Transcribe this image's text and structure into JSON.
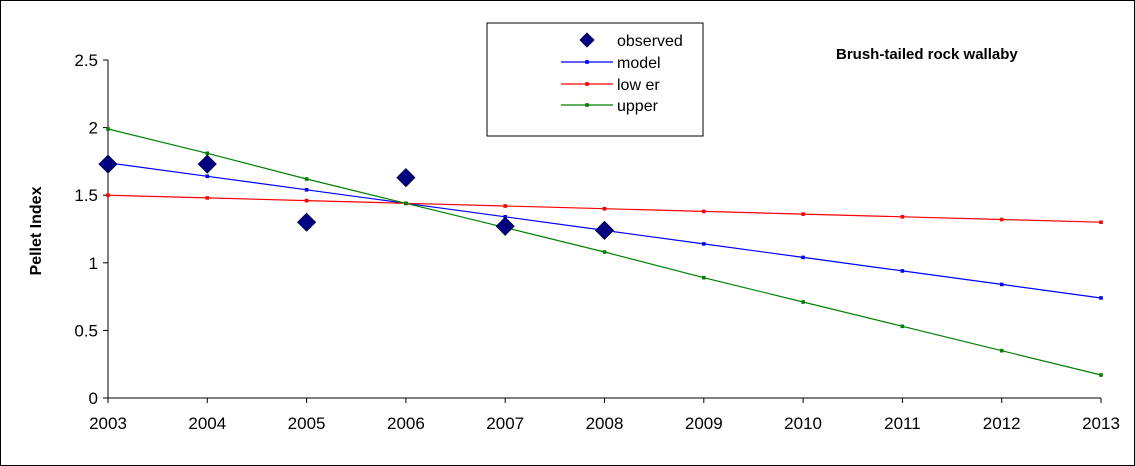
{
  "chart_data": {
    "type": "line",
    "title": "Brush-tailed rock wallaby",
    "xlabel": "",
    "ylabel": "Pellet Index",
    "xlim": [
      2003,
      2013
    ],
    "ylim": [
      0,
      2.5
    ],
    "x_ticks": [
      2003,
      2004,
      2005,
      2006,
      2007,
      2008,
      2009,
      2010,
      2011,
      2012,
      2013
    ],
    "y_ticks": [
      0,
      0.5,
      1,
      1.5,
      2,
      2.5
    ],
    "y_tick_labels": [
      "0",
      "0.5",
      "1",
      "1.5",
      "2",
      "2.5"
    ],
    "grid": false,
    "legend_position": "top-center",
    "series": [
      {
        "name": "observed",
        "kind": "scatter",
        "marker": "diamond",
        "color": "#000080",
        "x": [
          2003,
          2004,
          2005,
          2006,
          2007,
          2008
        ],
        "y": [
          1.73,
          1.73,
          1.3,
          1.63,
          1.27,
          1.24
        ]
      },
      {
        "name": "model",
        "kind": "line",
        "color": "#0000ff",
        "x": [
          2003,
          2004,
          2005,
          2006,
          2007,
          2008,
          2009,
          2010,
          2011,
          2012,
          2013
        ],
        "y": [
          1.74,
          1.64,
          1.54,
          1.44,
          1.34,
          1.24,
          1.14,
          1.04,
          0.94,
          0.84,
          0.74
        ]
      },
      {
        "name": "lower",
        "legend_label": "low er",
        "kind": "line",
        "color": "#ff0000",
        "x": [
          2003,
          2004,
          2005,
          2006,
          2007,
          2008,
          2009,
          2010,
          2011,
          2012,
          2013
        ],
        "y": [
          1.5,
          1.48,
          1.46,
          1.44,
          1.42,
          1.4,
          1.38,
          1.36,
          1.34,
          1.32,
          1.3
        ]
      },
      {
        "name": "upper",
        "kind": "line",
        "color": "#008000",
        "x": [
          2003,
          2004,
          2005,
          2006,
          2007,
          2008,
          2009,
          2010,
          2011,
          2012,
          2013
        ],
        "y": [
          1.99,
          1.81,
          1.62,
          1.44,
          1.26,
          1.08,
          0.89,
          0.71,
          0.53,
          0.35,
          0.17
        ]
      }
    ]
  }
}
